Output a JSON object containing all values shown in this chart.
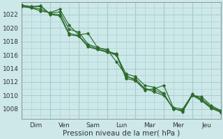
{
  "background_color": "#cce8e8",
  "grid_color": "#aacccc",
  "line_color": "#2d6a2d",
  "xlabel": "Pression niveau de la mer( hPa )",
  "ytick_values": [
    1008,
    1010,
    1012,
    1014,
    1016,
    1018,
    1020,
    1022
  ],
  "ylim": [
    1006.5,
    1023.8
  ],
  "series": [
    [
      1023.2,
      1023.0,
      1022.5,
      1022.3,
      1022.8,
      1020.4,
      1019.0,
      1019.2,
      1017.1,
      1016.7,
      1016.0,
      1013.2,
      1012.8,
      1011.5,
      1011.2,
      1010.3,
      1008.0,
      1007.8,
      1010.0,
      1009.8,
      1008.5,
      1007.8
    ],
    [
      1023.2,
      1023.0,
      1022.8,
      1022.2,
      1022.4,
      1019.8,
      1019.4,
      1017.6,
      1017.1,
      1016.8,
      1015.0,
      1013.0,
      1012.2,
      1010.8,
      1011.0,
      1011.5,
      1008.2,
      1008.0,
      1010.1,
      1009.5,
      1008.3,
      1007.7
    ],
    [
      1023.3,
      1023.1,
      1023.2,
      1022.1,
      1022.0,
      1019.2,
      1018.9,
      1017.4,
      1016.9,
      1016.5,
      1016.2,
      1012.7,
      1012.5,
      1011.0,
      1010.8,
      1010.2,
      1008.0,
      1007.8,
      1010.2,
      1009.3,
      1008.2,
      1007.6
    ],
    [
      1023.4,
      1023.2,
      1023.3,
      1022.0,
      1021.8,
      1019.0,
      1018.8,
      1017.2,
      1016.8,
      1016.4,
      1016.0,
      1012.5,
      1012.2,
      1011.0,
      1010.5,
      1010.0,
      1008.1,
      1007.6,
      1010.0,
      1009.2,
      1008.1,
      1007.5
    ]
  ],
  "day_boundaries": [
    0,
    3,
    6,
    9,
    12,
    15,
    18,
    21
  ],
  "day_labels": [
    "Dim",
    "Ven",
    "Sam",
    "Lun",
    "Mar",
    "Mer",
    "Jeu"
  ],
  "day_label_centers": [
    1.5,
    4.5,
    7.5,
    10.5,
    13.5,
    16.5,
    19.5
  ],
  "n_points": 22,
  "xlabel_fontsize": 7.5,
  "ytick_fontsize": 6.5,
  "xtick_fontsize": 6.5
}
